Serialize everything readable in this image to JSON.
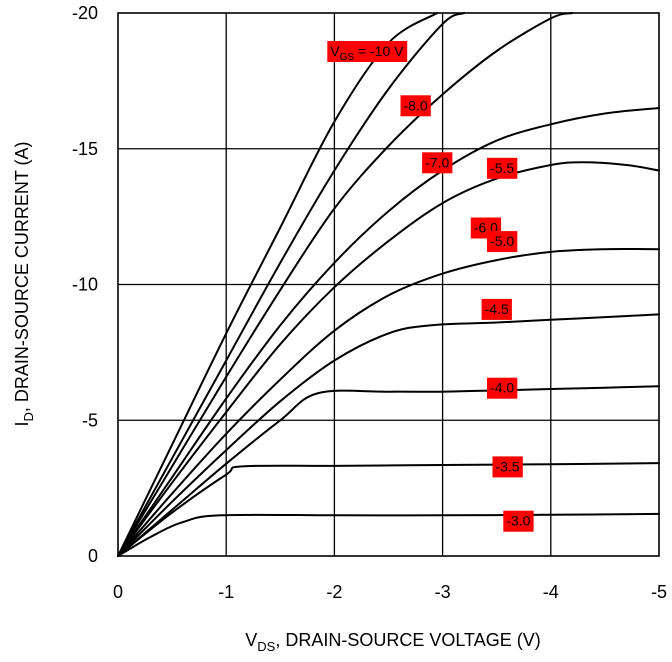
{
  "chart_data": {
    "type": "line",
    "xlabel": {
      "main": "V",
      "sub": "DS",
      "rest": ", DRAIN-SOURCE VOLTAGE (V)"
    },
    "ylabel": {
      "main": "I",
      "sub": "D",
      "rest": ", DRAIN-SOURCE CURRENT (A)"
    },
    "xlim": [
      0,
      -5
    ],
    "ylim": [
      0,
      -20
    ],
    "x_ticks": [
      {
        "value": 0,
        "label": "0"
      },
      {
        "value": -1,
        "label": "-1"
      },
      {
        "value": -2,
        "label": "-2"
      },
      {
        "value": -3,
        "label": "-3"
      },
      {
        "value": -4,
        "label": "-4"
      },
      {
        "value": -5,
        "label": "-5"
      }
    ],
    "y_ticks": [
      {
        "value": 0,
        "label": "0"
      },
      {
        "value": -5,
        "label": "-5"
      },
      {
        "value": -10,
        "label": "-10"
      },
      {
        "value": -15,
        "label": "-15"
      },
      {
        "value": -20,
        "label": "-20"
      }
    ],
    "grid": true,
    "label_color": "#ff0000",
    "series": [
      {
        "label": "-10 V",
        "label_prefix": "V",
        "label_sub": "GS",
        "label_at": [
          -2.3,
          -18.6
        ],
        "x": [
          0,
          -0.5,
          -1,
          -1.5,
          -2,
          -2.5,
          -2.95
        ],
        "y": [
          0,
          -4.1,
          -8.2,
          -12.1,
          -16.0,
          -18.9,
          -20.0
        ]
      },
      {
        "label": "-8.0",
        "label_at": [
          -2.75,
          -16.6
        ],
        "x": [
          0,
          -0.5,
          -1,
          -1.5,
          -2,
          -2.5,
          -3,
          -3.2
        ],
        "y": [
          0,
          -3.6,
          -7.2,
          -10.8,
          -14.2,
          -17.2,
          -19.6,
          -20.0
        ]
      },
      {
        "label": "-7.0",
        "label_at": [
          -2.95,
          -14.5
        ],
        "x": [
          0,
          -0.5,
          -1,
          -1.5,
          -2,
          -2.5,
          -3,
          -3.5,
          -4,
          -4.2
        ],
        "y": [
          0,
          -3.3,
          -6.6,
          -9.8,
          -12.8,
          -15.1,
          -17.0,
          -18.6,
          -19.8,
          -20.0
        ]
      },
      {
        "label": "-6.0",
        "label_at": [
          -3.4,
          -12.1
        ],
        "x": [
          0,
          -0.5,
          -1,
          -1.5,
          -2,
          -2.5,
          -3,
          -3.5,
          -4,
          -4.5,
          -5
        ],
        "y": [
          0,
          -2.9,
          -5.8,
          -8.5,
          -10.8,
          -12.7,
          -14.2,
          -15.3,
          -15.9,
          -16.3,
          -16.5
        ]
      },
      {
        "label": "-5.5",
        "label_at": [
          -3.55,
          -14.3
        ],
        "x": [
          0,
          -0.5,
          -1,
          -1.5,
          -2,
          -2.5,
          -3,
          -3.5,
          -4,
          -4.3,
          -4.7,
          -5
        ],
        "y": [
          0,
          -2.7,
          -5.3,
          -7.8,
          -9.9,
          -11.6,
          -13.0,
          -13.9,
          -14.4,
          -14.5,
          -14.4,
          -14.2
        ]
      },
      {
        "label": "-5.0",
        "label_at": [
          -3.55,
          -11.6
        ],
        "x": [
          0,
          -0.5,
          -1,
          -1.5,
          -2,
          -2.5,
          -3,
          -3.5,
          -4,
          -4.5,
          -5
        ],
        "y": [
          0,
          -2.3,
          -4.5,
          -6.5,
          -8.3,
          -9.6,
          -10.4,
          -10.9,
          -11.2,
          -11.3,
          -11.3
        ]
      },
      {
        "label": "-4.5",
        "label_at": [
          -3.5,
          -9.1
        ],
        "x": [
          0,
          -0.5,
          -1,
          -1.5,
          -2,
          -2.5,
          -2.9,
          -3.5,
          -4,
          -4.5,
          -5
        ],
        "y": [
          0,
          -2.0,
          -3.9,
          -5.7,
          -7.2,
          -8.2,
          -8.5,
          -8.6,
          -8.7,
          -8.8,
          -8.9
        ]
      },
      {
        "label": "-4.0",
        "label_at": [
          -3.55,
          -6.2
        ],
        "x": [
          0,
          -0.5,
          -1,
          -1.5,
          -1.85,
          -2.5,
          -3,
          -3.5,
          -4,
          -4.5,
          -5
        ],
        "y": [
          0,
          -1.7,
          -3.4,
          -5.0,
          -6.0,
          -6.05,
          -6.05,
          -6.1,
          -6.15,
          -6.2,
          -6.25
        ]
      },
      {
        "label": "-3.5",
        "label_at": [
          -3.6,
          -3.3
        ],
        "x": [
          0,
          -0.5,
          -1,
          -1.15,
          -2,
          -3,
          -4,
          -5
        ],
        "y": [
          0,
          -1.6,
          -3.0,
          -3.3,
          -3.32,
          -3.35,
          -3.38,
          -3.42
        ]
      },
      {
        "label": "-3.0",
        "label_at": [
          -3.7,
          -1.3
        ],
        "x": [
          0,
          -0.3,
          -0.6,
          -0.95,
          -2,
          -3,
          -4,
          -5
        ],
        "y": [
          0,
          -0.7,
          -1.25,
          -1.5,
          -1.5,
          -1.5,
          -1.52,
          -1.55
        ]
      }
    ]
  }
}
